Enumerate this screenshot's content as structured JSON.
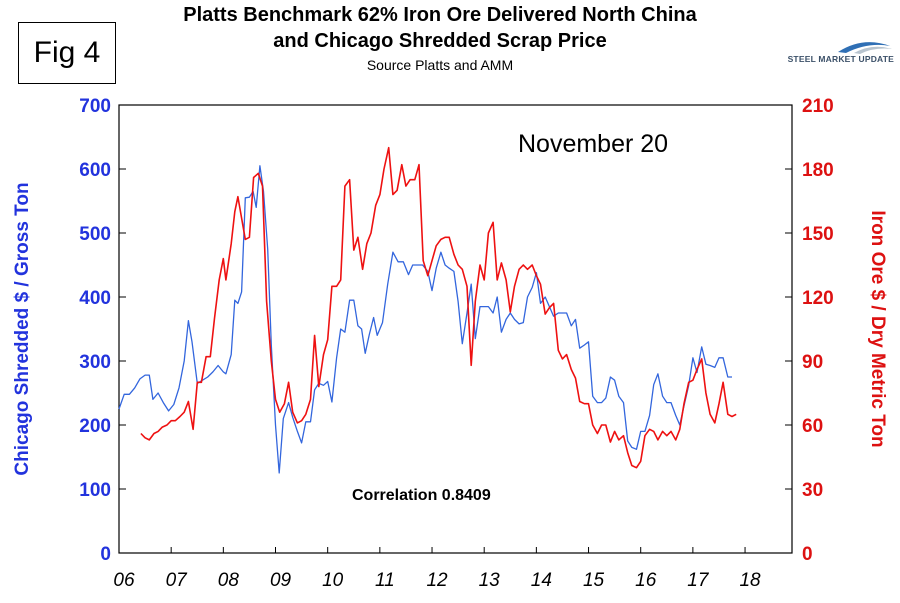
{
  "figure_label": "Fig 4",
  "logo_text": "STEEL MARKET UPDATE",
  "chart_data": {
    "type": "line",
    "title": "Platts Benchmark 62% Iron Ore Delivered North China",
    "title_line2": "and Chicago Shredded Scrap Price",
    "subtitle": "Source Platts and AMM",
    "annotation": "November 20",
    "correlation_label": "Correlation 0.8409",
    "ylabel_left": "Chicago Shredded $ / Gross Ton",
    "ylabel_right": "Iron Ore $ / Dry Metric Ton",
    "ylim_left": [
      0,
      700
    ],
    "ylim_right": [
      0,
      210
    ],
    "yticks_left": [
      "0",
      "100",
      "200",
      "300",
      "400",
      "500",
      "600",
      "700"
    ],
    "yticks_right": [
      "0",
      "30",
      "60",
      "90",
      "120",
      "150",
      "180",
      "210"
    ],
    "xlim": [
      2006,
      2018.9
    ],
    "xticks": [
      {
        "x": 2006,
        "label": "06"
      },
      {
        "x": 2007,
        "label": "07"
      },
      {
        "x": 2008,
        "label": "08"
      },
      {
        "x": 2009,
        "label": "09"
      },
      {
        "x": 2010,
        "label": "10"
      },
      {
        "x": 2011,
        "label": "11"
      },
      {
        "x": 2012,
        "label": "12"
      },
      {
        "x": 2013,
        "label": "13"
      },
      {
        "x": 2014,
        "label": "14"
      },
      {
        "x": 2015,
        "label": "15"
      },
      {
        "x": 2016,
        "label": "16"
      },
      {
        "x": 2017,
        "label": "17"
      },
      {
        "x": 2018,
        "label": "18"
      }
    ],
    "grid": false,
    "series": [
      {
        "axis": "left",
        "color": "#3366dd",
        "points": [
          [
            2006.0,
            225
          ],
          [
            2006.1,
            248
          ],
          [
            2006.2,
            248
          ],
          [
            2006.3,
            258
          ],
          [
            2006.4,
            272
          ],
          [
            2006.5,
            278
          ],
          [
            2006.58,
            278
          ],
          [
            2006.65,
            240
          ],
          [
            2006.75,
            250
          ],
          [
            2006.85,
            235
          ],
          [
            2006.95,
            222
          ],
          [
            2007.05,
            232
          ],
          [
            2007.15,
            258
          ],
          [
            2007.25,
            300
          ],
          [
            2007.33,
            363
          ],
          [
            2007.4,
            330
          ],
          [
            2007.5,
            265
          ],
          [
            2007.6,
            270
          ],
          [
            2007.7,
            275
          ],
          [
            2007.8,
            283
          ],
          [
            2007.9,
            293
          ],
          [
            2008.0,
            283
          ],
          [
            2008.05,
            280
          ],
          [
            2008.15,
            310
          ],
          [
            2008.22,
            395
          ],
          [
            2008.28,
            390
          ],
          [
            2008.35,
            408
          ],
          [
            2008.42,
            555
          ],
          [
            2008.5,
            556
          ],
          [
            2008.57,
            565
          ],
          [
            2008.63,
            540
          ],
          [
            2008.7,
            605
          ],
          [
            2008.77,
            565
          ],
          [
            2008.85,
            475
          ],
          [
            2008.92,
            325
          ],
          [
            2009.0,
            200
          ],
          [
            2009.07,
            125
          ],
          [
            2009.15,
            210
          ],
          [
            2009.25,
            235
          ],
          [
            2009.33,
            212
          ],
          [
            2009.42,
            190
          ],
          [
            2009.5,
            172
          ],
          [
            2009.58,
            205
          ],
          [
            2009.67,
            205
          ],
          [
            2009.75,
            255
          ],
          [
            2009.83,
            265
          ],
          [
            2009.92,
            262
          ],
          [
            2010.0,
            268
          ],
          [
            2010.08,
            236
          ],
          [
            2010.17,
            305
          ],
          [
            2010.25,
            350
          ],
          [
            2010.33,
            345
          ],
          [
            2010.42,
            395
          ],
          [
            2010.5,
            395
          ],
          [
            2010.58,
            355
          ],
          [
            2010.65,
            350
          ],
          [
            2010.72,
            312
          ],
          [
            2010.8,
            342
          ],
          [
            2010.88,
            368
          ],
          [
            2010.95,
            340
          ],
          [
            2011.05,
            360
          ],
          [
            2011.15,
            420
          ],
          [
            2011.25,
            470
          ],
          [
            2011.35,
            455
          ],
          [
            2011.45,
            455
          ],
          [
            2011.55,
            435
          ],
          [
            2011.63,
            450
          ],
          [
            2011.72,
            450
          ],
          [
            2011.82,
            450
          ],
          [
            2011.92,
            440
          ],
          [
            2012.0,
            410
          ],
          [
            2012.08,
            445
          ],
          [
            2012.17,
            470
          ],
          [
            2012.25,
            450
          ],
          [
            2012.33,
            445
          ],
          [
            2012.42,
            440
          ],
          [
            2012.5,
            393
          ],
          [
            2012.58,
            327
          ],
          [
            2012.67,
            375
          ],
          [
            2012.75,
            420
          ],
          [
            2012.83,
            335
          ],
          [
            2012.92,
            385
          ],
          [
            2013.0,
            385
          ],
          [
            2013.08,
            385
          ],
          [
            2013.17,
            375
          ],
          [
            2013.25,
            400
          ],
          [
            2013.33,
            345
          ],
          [
            2013.42,
            365
          ],
          [
            2013.5,
            375
          ],
          [
            2013.58,
            365
          ],
          [
            2013.67,
            358
          ],
          [
            2013.75,
            360
          ],
          [
            2013.83,
            400
          ],
          [
            2013.92,
            415
          ],
          [
            2014.0,
            438
          ],
          [
            2014.08,
            390
          ],
          [
            2014.17,
            400
          ],
          [
            2014.25,
            385
          ],
          [
            2014.33,
            370
          ],
          [
            2014.42,
            375
          ],
          [
            2014.5,
            375
          ],
          [
            2014.58,
            375
          ],
          [
            2014.67,
            355
          ],
          [
            2014.75,
            365
          ],
          [
            2014.83,
            320
          ],
          [
            2014.92,
            325
          ],
          [
            2015.0,
            330
          ],
          [
            2015.08,
            245
          ],
          [
            2015.17,
            235
          ],
          [
            2015.25,
            235
          ],
          [
            2015.33,
            242
          ],
          [
            2015.42,
            275
          ],
          [
            2015.5,
            270
          ],
          [
            2015.58,
            245
          ],
          [
            2015.67,
            235
          ],
          [
            2015.75,
            175
          ],
          [
            2015.83,
            165
          ],
          [
            2015.92,
            162
          ],
          [
            2016.0,
            190
          ],
          [
            2016.08,
            190
          ],
          [
            2016.17,
            215
          ],
          [
            2016.25,
            263
          ],
          [
            2016.33,
            280
          ],
          [
            2016.42,
            245
          ],
          [
            2016.5,
            235
          ],
          [
            2016.58,
            235
          ],
          [
            2016.67,
            215
          ],
          [
            2016.75,
            200
          ],
          [
            2016.83,
            230
          ],
          [
            2016.92,
            262
          ],
          [
            2017.0,
            305
          ],
          [
            2017.08,
            282
          ],
          [
            2017.17,
            322
          ],
          [
            2017.25,
            295
          ],
          [
            2017.33,
            293
          ],
          [
            2017.42,
            290
          ],
          [
            2017.5,
            305
          ],
          [
            2017.58,
            305
          ],
          [
            2017.67,
            275
          ],
          [
            2017.75,
            275
          ]
        ]
      },
      {
        "axis": "right",
        "color": "#ee1111",
        "points": [
          [
            2006.42,
            56
          ],
          [
            2006.5,
            54
          ],
          [
            2006.58,
            53
          ],
          [
            2006.67,
            56
          ],
          [
            2006.75,
            57
          ],
          [
            2006.83,
            59
          ],
          [
            2006.92,
            60
          ],
          [
            2007.0,
            62
          ],
          [
            2007.08,
            62
          ],
          [
            2007.17,
            64
          ],
          [
            2007.25,
            66
          ],
          [
            2007.33,
            71
          ],
          [
            2007.42,
            58
          ],
          [
            2007.5,
            80
          ],
          [
            2007.58,
            80
          ],
          [
            2007.67,
            92
          ],
          [
            2007.75,
            92
          ],
          [
            2007.83,
            110
          ],
          [
            2007.92,
            128
          ],
          [
            2008.0,
            138
          ],
          [
            2008.05,
            128
          ],
          [
            2008.15,
            145
          ],
          [
            2008.22,
            160
          ],
          [
            2008.28,
            167
          ],
          [
            2008.35,
            157
          ],
          [
            2008.42,
            147
          ],
          [
            2008.5,
            148
          ],
          [
            2008.58,
            176
          ],
          [
            2008.67,
            178
          ],
          [
            2008.75,
            172
          ],
          [
            2008.83,
            118
          ],
          [
            2008.92,
            90
          ],
          [
            2009.0,
            72
          ],
          [
            2009.08,
            66
          ],
          [
            2009.17,
            70
          ],
          [
            2009.25,
            80
          ],
          [
            2009.33,
            66
          ],
          [
            2009.42,
            61
          ],
          [
            2009.5,
            62
          ],
          [
            2009.58,
            65
          ],
          [
            2009.67,
            72
          ],
          [
            2009.75,
            102
          ],
          [
            2009.83,
            78
          ],
          [
            2009.92,
            93
          ],
          [
            2010.0,
            100
          ],
          [
            2010.08,
            125
          ],
          [
            2010.17,
            125
          ],
          [
            2010.25,
            128
          ],
          [
            2010.33,
            172
          ],
          [
            2010.42,
            175
          ],
          [
            2010.5,
            142
          ],
          [
            2010.58,
            148
          ],
          [
            2010.67,
            133
          ],
          [
            2010.75,
            145
          ],
          [
            2010.83,
            150
          ],
          [
            2010.92,
            163
          ],
          [
            2011.0,
            168
          ],
          [
            2011.08,
            180
          ],
          [
            2011.17,
            190
          ],
          [
            2011.25,
            168
          ],
          [
            2011.33,
            170
          ],
          [
            2011.42,
            182
          ],
          [
            2011.5,
            172
          ],
          [
            2011.58,
            175
          ],
          [
            2011.67,
            175
          ],
          [
            2011.75,
            182
          ],
          [
            2011.83,
            137
          ],
          [
            2011.92,
            130
          ],
          [
            2012.0,
            137
          ],
          [
            2012.08,
            144
          ],
          [
            2012.17,
            147
          ],
          [
            2012.25,
            148
          ],
          [
            2012.33,
            148
          ],
          [
            2012.42,
            140
          ],
          [
            2012.5,
            135
          ],
          [
            2012.58,
            133
          ],
          [
            2012.67,
            125
          ],
          [
            2012.75,
            88
          ],
          [
            2012.83,
            118
          ],
          [
            2012.92,
            135
          ],
          [
            2013.0,
            128
          ],
          [
            2013.08,
            150
          ],
          [
            2013.17,
            155
          ],
          [
            2013.25,
            128
          ],
          [
            2013.33,
            136
          ],
          [
            2013.42,
            128
          ],
          [
            2013.5,
            113
          ],
          [
            2013.58,
            125
          ],
          [
            2013.67,
            133
          ],
          [
            2013.75,
            135
          ],
          [
            2013.83,
            133
          ],
          [
            2013.92,
            135
          ],
          [
            2014.0,
            130
          ],
          [
            2014.08,
            126
          ],
          [
            2014.17,
            112
          ],
          [
            2014.25,
            115
          ],
          [
            2014.33,
            117
          ],
          [
            2014.42,
            95
          ],
          [
            2014.5,
            91
          ],
          [
            2014.58,
            93
          ],
          [
            2014.67,
            86
          ],
          [
            2014.75,
            82
          ],
          [
            2014.83,
            71
          ],
          [
            2014.92,
            70
          ],
          [
            2015.0,
            70
          ],
          [
            2015.08,
            60
          ],
          [
            2015.17,
            56
          ],
          [
            2015.25,
            60
          ],
          [
            2015.33,
            60
          ],
          [
            2015.42,
            52
          ],
          [
            2015.5,
            57
          ],
          [
            2015.58,
            53
          ],
          [
            2015.67,
            55
          ],
          [
            2015.75,
            47
          ],
          [
            2015.83,
            41
          ],
          [
            2015.92,
            40
          ],
          [
            2016.0,
            43
          ],
          [
            2016.08,
            55
          ],
          [
            2016.17,
            58
          ],
          [
            2016.25,
            57
          ],
          [
            2016.33,
            53
          ],
          [
            2016.42,
            57
          ],
          [
            2016.5,
            55
          ],
          [
            2016.58,
            57
          ],
          [
            2016.67,
            53
          ],
          [
            2016.75,
            58
          ],
          [
            2016.83,
            70
          ],
          [
            2016.92,
            80
          ],
          [
            2017.0,
            81
          ],
          [
            2017.08,
            86
          ],
          [
            2017.17,
            91
          ],
          [
            2017.25,
            75
          ],
          [
            2017.33,
            65
          ],
          [
            2017.42,
            61
          ],
          [
            2017.5,
            70
          ],
          [
            2017.58,
            80
          ],
          [
            2017.67,
            65
          ],
          [
            2017.75,
            64
          ],
          [
            2017.83,
            65
          ]
        ]
      }
    ]
  }
}
